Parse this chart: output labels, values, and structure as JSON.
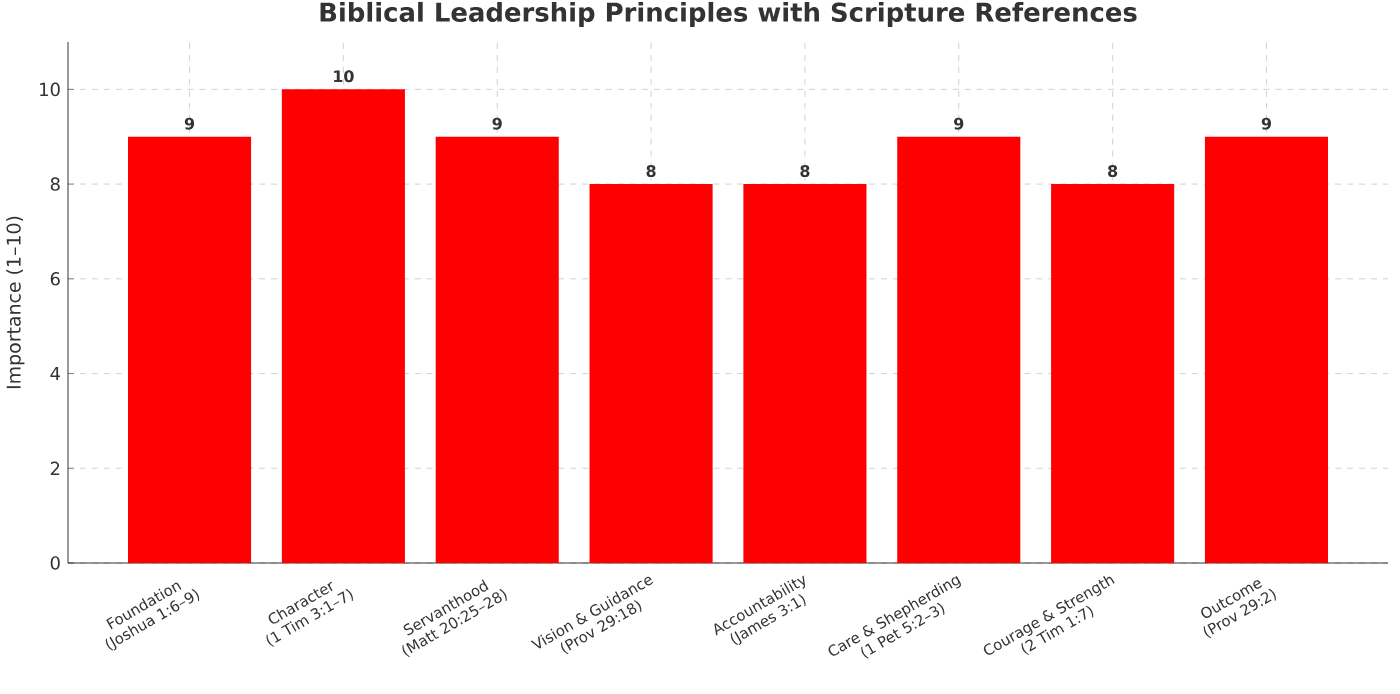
{
  "chart_data": {
    "type": "bar",
    "title": "Biblical Leadership Principles with Scripture References",
    "ylabel": "Importance (1–10)",
    "categories": [
      "Foundation\n(Joshua 1:6–9)",
      "Character\n(1 Tim 3:1–7)",
      "Servanthood\n(Matt 20:25–28)",
      "Vision & Guidance\n(Prov 29:18)",
      "Accountability\n(James 3:1)",
      "Care & Shepherding\n(1 Pet 5:2–3)",
      "Courage & Strength\n(2 Tim 1:7)",
      "Outcome\n(Prov 29:2)"
    ],
    "values": [
      9,
      10,
      9,
      8,
      8,
      9,
      8,
      9
    ],
    "color": "#ff0000",
    "ylim": [
      0,
      11
    ],
    "yticks": [
      0,
      2,
      4,
      6,
      8,
      10
    ],
    "grid": true,
    "data_labels": true
  }
}
